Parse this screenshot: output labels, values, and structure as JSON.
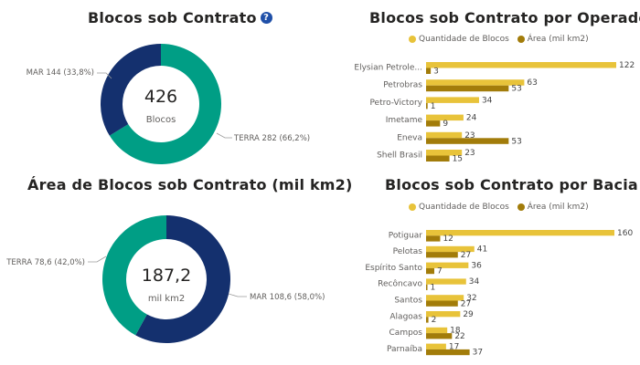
{
  "colors": {
    "teal": "#009e85",
    "navy": "#14306e",
    "quantidade": "#e8c33a",
    "area": "#a27c0a",
    "help": "#1f4fa8"
  },
  "panel1": {
    "title": "Blocos sob Contrato",
    "help_icon": "?",
    "center_value": "426",
    "center_label": "Blocos",
    "mar_label": "MAR 144 (33,8%)",
    "terra_label": "TERRA 282 (66,2%)"
  },
  "panel2": {
    "title": "Blocos sob Contrato por Operador",
    "legend": [
      "Quantidade de Blocos",
      "Área (mil km2)"
    ]
  },
  "panel3": {
    "title": "Área de Blocos sob Contrato (mil km2)",
    "center_value": "187,2",
    "center_label": "mil km2",
    "terra_label": "TERRA 78,6 (42,0%)",
    "mar_label": "MAR 108,6 (58,0%)"
  },
  "panel4": {
    "title": "Blocos sob Contrato por Bacia",
    "legend": [
      "Quantidade de Blocos",
      "Área (mil km2)"
    ]
  },
  "chart_data": [
    {
      "type": "pie",
      "title": "Blocos sob Contrato",
      "categories": [
        "TERRA",
        "MAR"
      ],
      "values": [
        282,
        144
      ],
      "percent_labels": [
        "66,2%",
        "33,8%"
      ],
      "total": "426",
      "total_label": "Blocos"
    },
    {
      "type": "bar",
      "orientation": "horizontal",
      "title": "Blocos sob Contrato por Operador",
      "categories": [
        "Elysian Petrole...",
        "Petrobras",
        "Petro-Victory",
        "Imetame",
        "Eneva",
        "Shell Brasil"
      ],
      "series": [
        {
          "name": "Quantidade de Blocos",
          "values": [
            122,
            63,
            34,
            24,
            23,
            23
          ]
        },
        {
          "name": "Área (mil km2)",
          "values": [
            3,
            53,
            1,
            9,
            53,
            15
          ]
        }
      ],
      "legend": "top"
    },
    {
      "type": "pie",
      "title": "Área de Blocos sob Contrato (mil km2)",
      "categories": [
        "MAR",
        "TERRA"
      ],
      "values": [
        108.6,
        78.6
      ],
      "percent_labels": [
        "58,0%",
        "42,0%"
      ],
      "total": "187,2",
      "total_label": "mil km2"
    },
    {
      "type": "bar",
      "orientation": "horizontal",
      "title": "Blocos sob Contrato por Bacia",
      "categories": [
        "Potiguar",
        "Pelotas",
        "Espírito Santo",
        "Recôncavo",
        "Santos",
        "Alagoas",
        "Campos",
        "Parnaíba"
      ],
      "series": [
        {
          "name": "Quantidade de Blocos",
          "values": [
            160,
            41,
            36,
            34,
            32,
            29,
            18,
            17
          ]
        },
        {
          "name": "Área (mil km2)",
          "values": [
            12,
            27,
            7,
            1,
            27,
            2,
            22,
            37
          ]
        }
      ],
      "legend": "top"
    }
  ]
}
